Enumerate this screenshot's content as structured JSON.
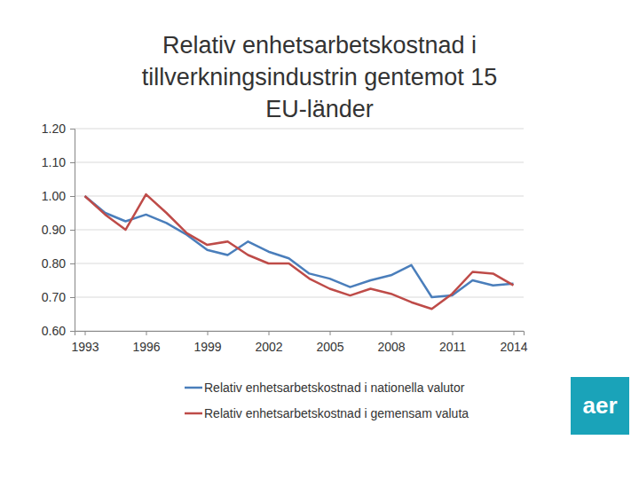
{
  "chart_data": {
    "type": "line",
    "title": "Relativ enhetsarbetskostnad i tillverkningsindustrin gentemot 15 EU-länder",
    "x": [
      1993,
      1994,
      1995,
      1996,
      1997,
      1998,
      1999,
      2000,
      2001,
      2002,
      2003,
      2004,
      2005,
      2006,
      2007,
      2008,
      2009,
      2010,
      2011,
      2012,
      2013,
      2014
    ],
    "series": [
      {
        "name": "Relativ enhetsarbetskostnad i nationella valutor",
        "color": "#4a7ebb",
        "values": [
          1.0,
          0.95,
          0.925,
          0.945,
          0.92,
          0.885,
          0.84,
          0.825,
          0.865,
          0.835,
          0.815,
          0.77,
          0.755,
          0.73,
          0.75,
          0.765,
          0.795,
          0.7,
          0.705,
          0.75,
          0.735,
          0.74
        ]
      },
      {
        "name": "Relativ enhetsarbetskostnad i gemensam valuta",
        "color": "#be4b48",
        "values": [
          1.0,
          0.945,
          0.9,
          1.005,
          0.95,
          0.89,
          0.855,
          0.865,
          0.825,
          0.8,
          0.8,
          0.755,
          0.725,
          0.705,
          0.725,
          0.71,
          0.685,
          0.665,
          0.71,
          0.775,
          0.77,
          0.735
        ]
      }
    ],
    "xlim": [
      1992.5,
      2014.5
    ],
    "xticks": [
      1993,
      1996,
      1999,
      2002,
      2005,
      2008,
      2011,
      2014
    ],
    "ylim": [
      0.6,
      1.2
    ],
    "yticks": [
      {
        "value": 0.6,
        "label": "0.60"
      },
      {
        "value": 0.7,
        "label": "0.70"
      },
      {
        "value": 0.8,
        "label": "0.80"
      },
      {
        "value": 0.9,
        "label": "0.90"
      },
      {
        "value": 1.0,
        "label": "1.00"
      },
      {
        "value": 1.1,
        "label": "1.10"
      },
      {
        "value": 1.2,
        "label": "1.20"
      }
    ],
    "grid": true,
    "legend": "bottom",
    "annotations": [
      "aer"
    ]
  }
}
